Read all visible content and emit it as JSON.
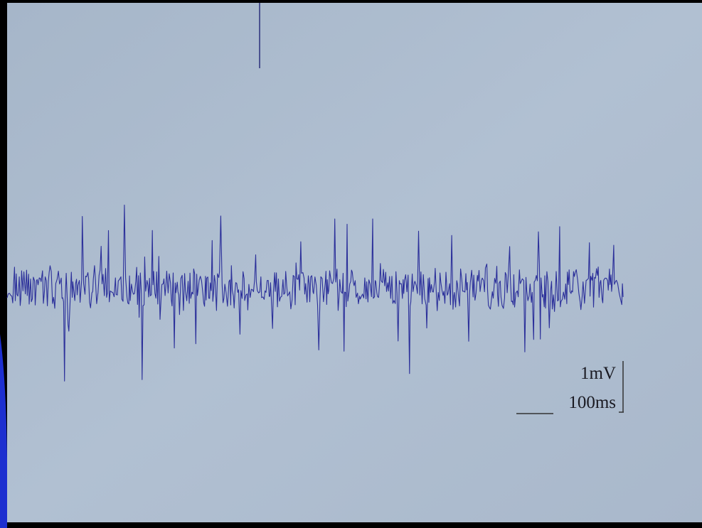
{
  "scale_bar": {
    "amplitude": "1mV",
    "time": "100ms"
  }
}
